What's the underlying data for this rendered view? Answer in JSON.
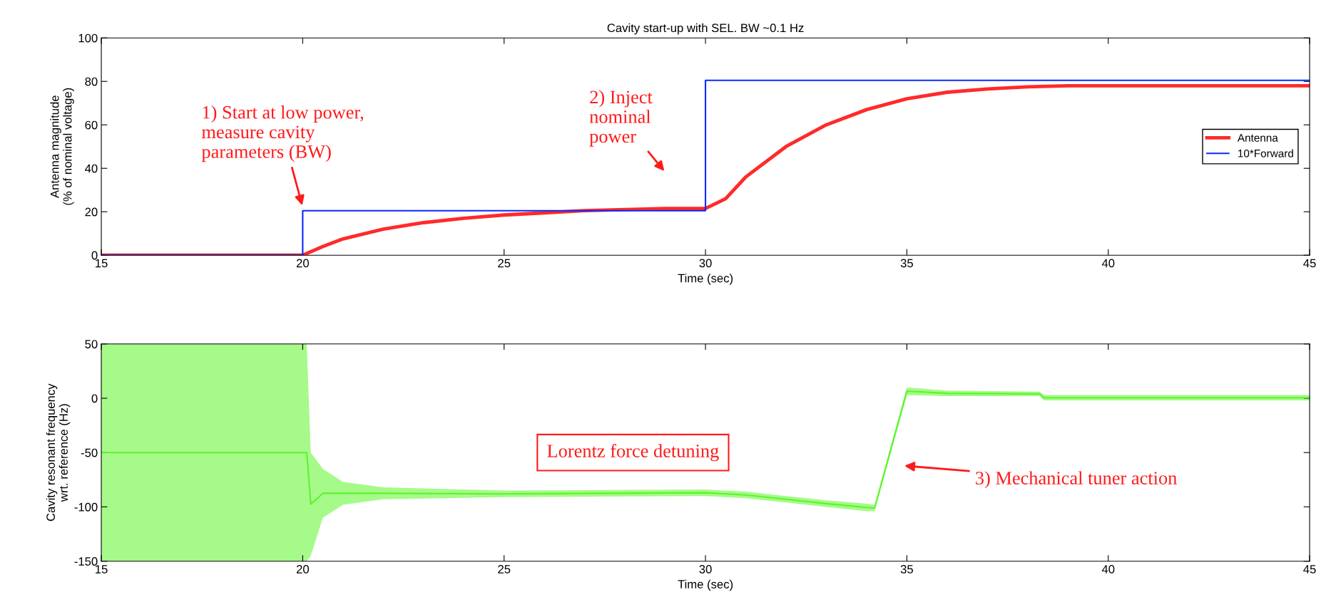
{
  "chart_data": [
    {
      "type": "line",
      "title": "Cavity start-up with SEL. BW ~0.1 Hz",
      "xlabel": "Time (sec)",
      "ylabel": "Antenna magnitude\n(% of nominal voltage)",
      "xlim": [
        15,
        45
      ],
      "xticks": [
        15,
        20,
        25,
        30,
        35,
        40,
        45
      ],
      "ylim": [
        0,
        100
      ],
      "yticks": [
        0,
        20,
        40,
        60,
        80,
        100
      ],
      "grid": false,
      "legend": "right",
      "marker": "none",
      "line_style": "solid",
      "series": [
        {
          "name": "Antenna",
          "color": "#ff2a2a",
          "x": [
            15,
            20,
            20.5,
            21,
            22,
            23,
            24,
            25,
            26,
            27,
            28,
            29,
            30,
            30.5,
            31,
            32,
            33,
            34,
            35,
            36,
            37,
            38,
            39,
            40,
            42,
            45
          ],
          "values": [
            0,
            0,
            4,
            7.5,
            12,
            15,
            17,
            18.5,
            19.5,
            20.5,
            21,
            21.5,
            21.5,
            26,
            36,
            50,
            60,
            67,
            72,
            75,
            76.5,
            77.5,
            78,
            78,
            78,
            78
          ]
        },
        {
          "name": "10*Forward",
          "color": "#0a28ff",
          "x": [
            15,
            20,
            20,
            30,
            30,
            45
          ],
          "values": [
            0,
            0,
            20.5,
            20.5,
            80.5,
            80.5
          ]
        }
      ],
      "annotations": [
        {
          "text": "1) Start at low power,\nmeasure cavity\nparameters (BW)",
          "x": 20,
          "y": 22
        },
        "2) Inject\nnominal\npower"
      ]
    },
    {
      "type": "line",
      "xlabel": "Time (sec)",
      "ylabel": "Cavity resonant frequency\nwrt. reference (Hz)",
      "xlim": [
        15,
        45
      ],
      "xticks": [
        15,
        20,
        25,
        30,
        35,
        40,
        45
      ],
      "ylim": [
        -150,
        50
      ],
      "yticks": [
        -150,
        -100,
        -50,
        0,
        50
      ],
      "grid": false,
      "legend": false,
      "marker": "none",
      "line_style": "solid",
      "series": [
        {
          "color": "#5cf52a",
          "x": [
            15,
            20,
            20.1,
            20.2,
            20.5,
            21,
            22,
            25,
            30,
            31,
            32,
            33,
            34,
            34.2,
            35,
            36,
            38.3,
            38.4,
            45
          ],
          "values": [
            -50,
            -50,
            -50,
            -97.5,
            -87.5,
            -87.5,
            -87.5,
            -88,
            -87,
            -89,
            -93,
            -97,
            -100.5,
            -101,
            6.5,
            4.5,
            4,
            0.5,
            0.5
          ],
          "lower": [
            -150,
            -150,
            -150,
            -145,
            -110,
            -98,
            -93,
            -91,
            -90,
            -92,
            -96,
            -100,
            -104,
            -104,
            3,
            2,
            2,
            -2,
            -2
          ],
          "upper": [
            50,
            50,
            50,
            -50,
            -65,
            -77,
            -82,
            -85,
            -84,
            -86,
            -90,
            -94,
            -97,
            -98,
            10,
            7,
            6,
            3,
            3
          ]
        }
      ],
      "annotations": [
        "Lorentz force detuning",
        "3) Mechanical tuner action"
      ]
    }
  ]
}
